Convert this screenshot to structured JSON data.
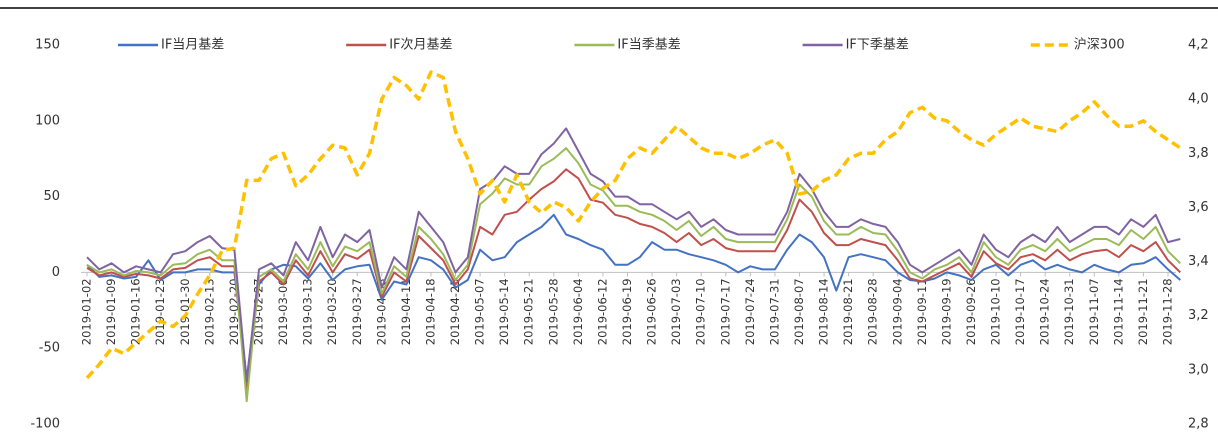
{
  "chart_data": {
    "type": "line",
    "categories": [
      "2019-01-02",
      null,
      "2019-01-09",
      null,
      "2019-01-16",
      null,
      "2019-01-23",
      null,
      "2019-01-30",
      null,
      "2019-02-13",
      null,
      "2019-02-20",
      null,
      "2019-02-27",
      null,
      "2019-03-06",
      null,
      "2019-03-13",
      null,
      "2019-03-20",
      null,
      "2019-03-27",
      null,
      "2019-04-03",
      null,
      "2019-04-11",
      null,
      "2019-04-18",
      null,
      "2019-04-25",
      null,
      "2019-05-07",
      null,
      "2019-05-14",
      null,
      "2019-05-21",
      null,
      "2019-05-28",
      null,
      "2019-06-04",
      null,
      "2019-06-12",
      null,
      "2019-06-19",
      null,
      "2019-06-26",
      null,
      "2019-07-03",
      null,
      "2019-07-10",
      null,
      "2019-07-17",
      null,
      "2019-07-24",
      null,
      "2019-07-31",
      null,
      "2019-08-07",
      null,
      "2019-08-14",
      null,
      "2019-08-21",
      null,
      "2019-08-28",
      null,
      "2019-09-04",
      null,
      "2019-09-11",
      null,
      "2019-09-19",
      null,
      "2019-09-26",
      null,
      "2019-10-10",
      null,
      "2019-10-17",
      null,
      "2019-10-24",
      null,
      "2019-10-31",
      null,
      "2019-11-07",
      null,
      "2019-11-14",
      null,
      "2019-11-21",
      null,
      "2019-11-28",
      null
    ],
    "series": [
      {
        "name": "IF当月基差",
        "color": "#4472c4",
        "values": [
          5,
          -3,
          -2,
          -4,
          -3,
          8,
          -5,
          0,
          0,
          2,
          2,
          0,
          0,
          -70,
          -8,
          2,
          5,
          4,
          -4,
          6,
          -5,
          2,
          4,
          5,
          -18,
          -6,
          -8,
          10,
          8,
          2,
          -10,
          -5,
          15,
          8,
          10,
          20,
          25,
          30,
          38,
          25,
          22,
          18,
          15,
          5,
          5,
          10,
          20,
          15,
          15,
          12,
          10,
          8,
          5,
          0,
          4,
          2,
          2,
          15,
          25,
          20,
          10,
          -12,
          10,
          12,
          10,
          8,
          0,
          -5,
          -6,
          -4,
          0,
          -2,
          -5,
          2,
          5,
          -2,
          5,
          8,
          2,
          5,
          2,
          0,
          5,
          2,
          0,
          5,
          6,
          10,
          2,
          -5
        ]
      },
      {
        "name": "IF次月基差",
        "color": "#c0504d",
        "values": [
          3,
          -2,
          0,
          -3,
          -1,
          -2,
          -4,
          2,
          3,
          8,
          10,
          4,
          4,
          -78,
          -6,
          0,
          -8,
          8,
          -2,
          14,
          0,
          12,
          9,
          15,
          -16,
          0,
          -6,
          24,
          16,
          8,
          -8,
          2,
          30,
          25,
          38,
          40,
          48,
          55,
          60,
          68,
          62,
          48,
          46,
          38,
          36,
          32,
          30,
          26,
          20,
          26,
          18,
          22,
          16,
          14,
          14,
          14,
          14,
          28,
          48,
          40,
          26,
          18,
          18,
          22,
          20,
          18,
          8,
          -4,
          -6,
          -2,
          2,
          6,
          -3,
          14,
          6,
          2,
          10,
          12,
          8,
          15,
          8,
          12,
          14,
          15,
          10,
          18,
          14,
          20,
          8,
          0
        ]
      },
      {
        "name": "IF当季基差",
        "color": "#9bbb59",
        "values": [
          5,
          0,
          2,
          -2,
          1,
          0,
          -2,
          5,
          6,
          12,
          15,
          8,
          8,
          -85,
          -3,
          2,
          -6,
          12,
          2,
          20,
          4,
          17,
          14,
          20,
          -14,
          4,
          -3,
          30,
          22,
          12,
          -5,
          5,
          45,
          52,
          62,
          58,
          58,
          70,
          75,
          82,
          72,
          58,
          54,
          44,
          44,
          40,
          38,
          34,
          28,
          34,
          24,
          30,
          22,
          20,
          20,
          20,
          20,
          35,
          58,
          50,
          34,
          25,
          25,
          30,
          26,
          25,
          14,
          0,
          -4,
          2,
          5,
          10,
          0,
          20,
          10,
          5,
          15,
          18,
          14,
          22,
          14,
          18,
          22,
          22,
          18,
          28,
          22,
          30,
          14,
          6
        ]
      },
      {
        "name": "IF下季基差",
        "color": "#8064a2",
        "values": [
          10,
          2,
          6,
          0,
          4,
          2,
          0,
          12,
          14,
          20,
          24,
          16,
          15,
          -72,
          2,
          6,
          -2,
          20,
          8,
          30,
          10,
          25,
          20,
          28,
          -10,
          10,
          2,
          40,
          30,
          20,
          0,
          10,
          55,
          60,
          70,
          65,
          65,
          78,
          85,
          95,
          80,
          65,
          60,
          50,
          50,
          45,
          45,
          40,
          35,
          40,
          30,
          35,
          28,
          25,
          25,
          25,
          25,
          40,
          65,
          55,
          40,
          30,
          30,
          35,
          32,
          30,
          20,
          5,
          0,
          5,
          10,
          15,
          5,
          25,
          15,
          10,
          20,
          25,
          20,
          30,
          20,
          25,
          30,
          30,
          25,
          35,
          30,
          38,
          20,
          22
        ]
      },
      {
        "name": "沪深300",
        "color": "#ffc000",
        "axis": "y2",
        "dashed": true,
        "values": [
          2.97,
          3.02,
          3.08,
          3.06,
          3.1,
          3.14,
          3.18,
          3.16,
          3.2,
          3.28,
          3.35,
          3.44,
          3.45,
          3.7,
          3.7,
          3.78,
          3.8,
          3.68,
          3.72,
          3.78,
          3.83,
          3.82,
          3.72,
          3.8,
          4.0,
          4.08,
          4.05,
          4.0,
          4.1,
          4.08,
          3.88,
          3.78,
          3.65,
          3.7,
          3.62,
          3.72,
          3.62,
          3.58,
          3.62,
          3.6,
          3.55,
          3.62,
          3.67,
          3.7,
          3.78,
          3.82,
          3.8,
          3.85,
          3.9,
          3.86,
          3.82,
          3.8,
          3.8,
          3.78,
          3.8,
          3.83,
          3.85,
          3.8,
          3.65,
          3.66,
          3.7,
          3.72,
          3.78,
          3.8,
          3.8,
          3.85,
          3.88,
          3.95,
          3.97,
          3.93,
          3.92,
          3.88,
          3.85,
          3.83,
          3.87,
          3.9,
          3.93,
          3.9,
          3.89,
          3.88,
          3.92,
          3.95,
          3.99,
          3.94,
          3.9,
          3.9,
          3.92,
          3.88,
          3.85,
          3.82
        ]
      }
    ],
    "ylim": [
      -100,
      150
    ],
    "yticks": [
      -100,
      -50,
      0,
      50,
      100,
      150
    ],
    "y2lim": [
      2.8,
      4.2
    ],
    "y2ticks": [
      {
        "value": 2.8,
        "label": "2,8"
      },
      {
        "value": 3.0,
        "label": "3,0"
      },
      {
        "value": 3.2,
        "label": "3,2"
      },
      {
        "value": 3.4,
        "label": "3,4"
      },
      {
        "value": 3.6,
        "label": "3,6"
      },
      {
        "value": 3.8,
        "label": "3,8"
      },
      {
        "value": 4.0,
        "label": "4,0"
      },
      {
        "value": 4.2,
        "label": "4,2"
      }
    ],
    "grid": false,
    "legend": "top"
  }
}
